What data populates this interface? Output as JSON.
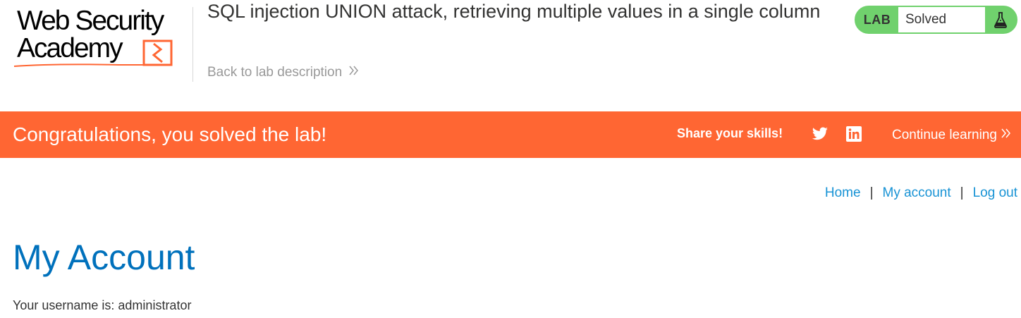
{
  "header": {
    "logo_line1": "Web Security",
    "logo_line2": "Academy",
    "lab_title": "SQL injection UNION attack, retrieving multiple values in a single column",
    "back_link": "Back to lab description",
    "back_chevron": "»"
  },
  "lab_badge": {
    "label": "LAB",
    "status": "Solved",
    "icon": "flask-icon",
    "color": "#70d16d"
  },
  "banner": {
    "message": "Congratulations, you solved the lab!",
    "share": "Share your skills!",
    "continue": "Continue learning",
    "continue_chevron": "»",
    "color": "#ff6633"
  },
  "nav": {
    "home": "Home",
    "separator": "|",
    "my_account": "My account",
    "log_out": "Log out"
  },
  "main": {
    "title": "My Account",
    "username_text": "Your username is: administrator"
  }
}
